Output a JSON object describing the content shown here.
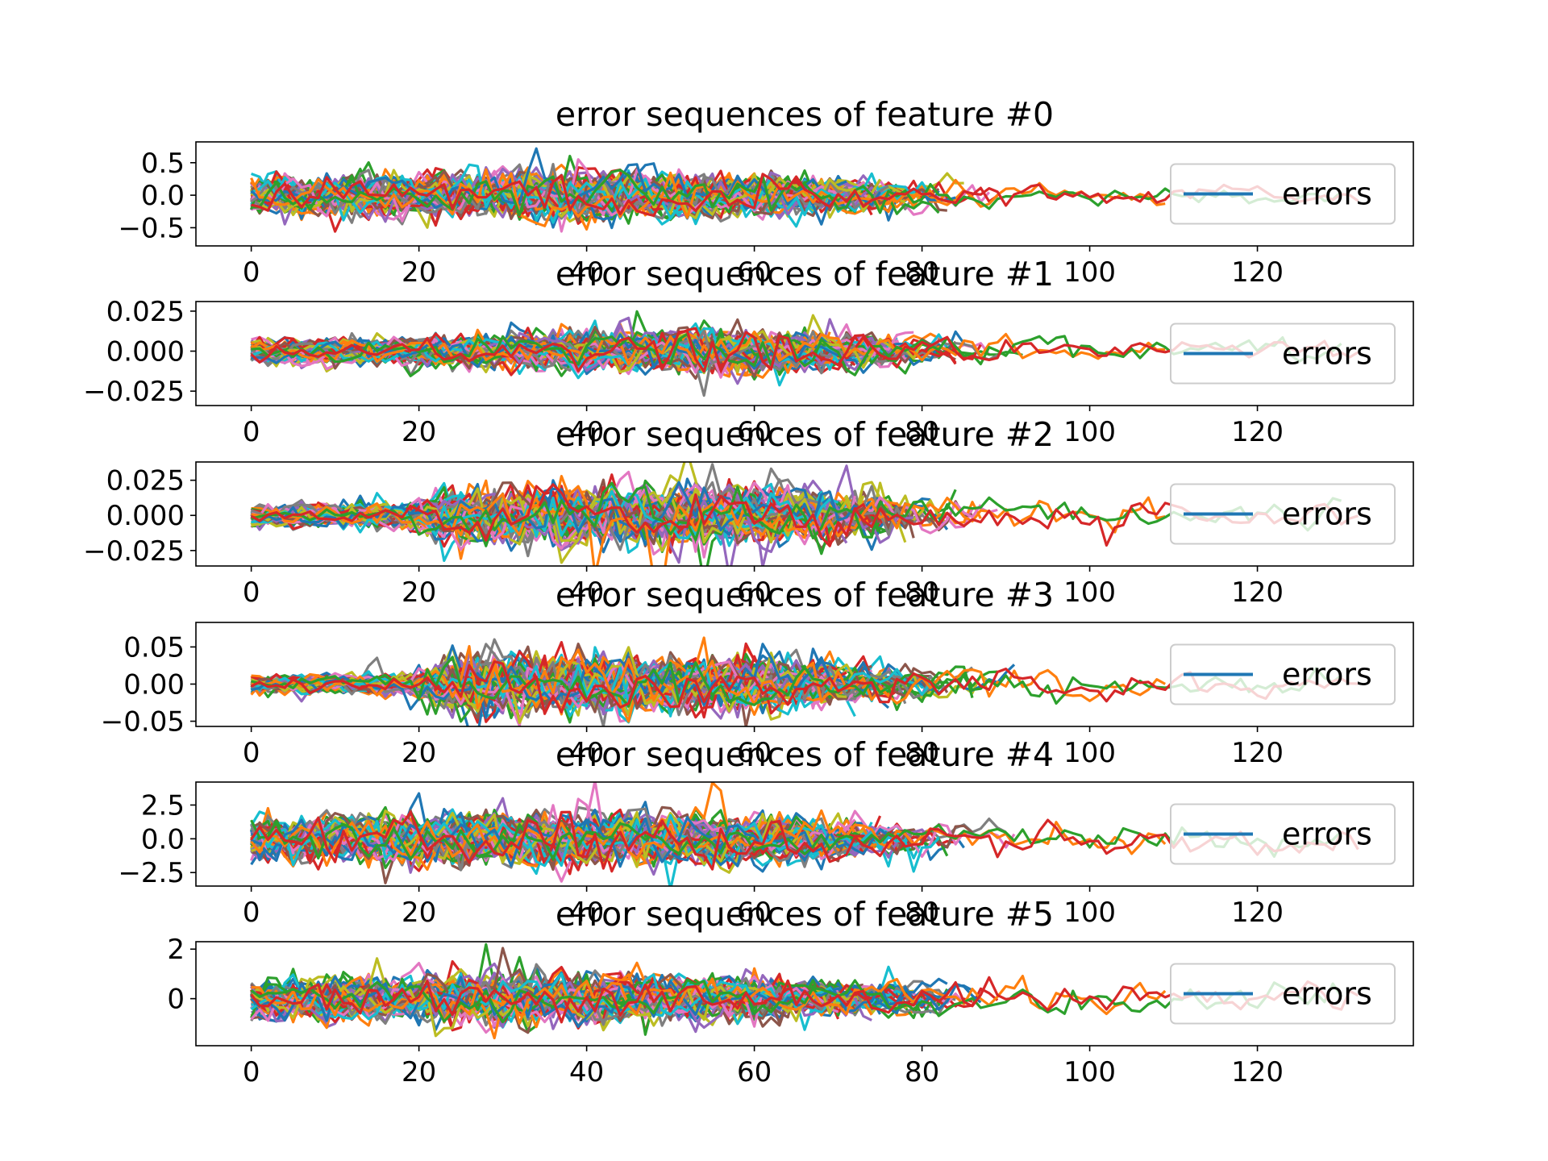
{
  "chart_data": [
    {
      "type": "line",
      "title": "error sequences of feature #0",
      "xlabel": "",
      "ylabel": "",
      "xlim": [
        -6.6,
        138.6
      ],
      "ylim": [
        -0.78,
        0.82
      ],
      "xticks": [
        0,
        20,
        40,
        60,
        80,
        100,
        120
      ],
      "xtick_labels": [
        "0",
        "20",
        "40",
        "60",
        "80",
        "100",
        "120"
      ],
      "yticks": [
        -0.5,
        0.0,
        0.5
      ],
      "ytick_labels": [
        "−0.5",
        "0.0",
        "0.5"
      ],
      "amplitude_envelope": [
        [
          0,
          0.32
        ],
        [
          20,
          0.33
        ],
        [
          30,
          0.42
        ],
        [
          40,
          0.45
        ],
        [
          60,
          0.34
        ],
        [
          75,
          0.28
        ],
        [
          90,
          0.2
        ],
        [
          110,
          0.14
        ],
        [
          132,
          0.2
        ]
      ],
      "series_count": 64,
      "series_length_range": [
        70,
        133
      ],
      "grid": false,
      "legend": {
        "entries": [
          "errors"
        ],
        "position": "right",
        "color": "#1f77b4"
      }
    },
    {
      "type": "line",
      "title": "error sequences of feature #1",
      "xlabel": "",
      "ylabel": "",
      "xlim": [
        -6.6,
        138.6
      ],
      "ylim": [
        -0.034,
        0.031
      ],
      "xticks": [
        0,
        20,
        40,
        60,
        80,
        100,
        120
      ],
      "xtick_labels": [
        "0",
        "20",
        "40",
        "60",
        "80",
        "100",
        "120"
      ],
      "yticks": [
        -0.025,
        0.0,
        0.025
      ],
      "ytick_labels": [
        "−0.025",
        "0.000",
        "0.025"
      ],
      "amplitude_envelope": [
        [
          0,
          0.008
        ],
        [
          20,
          0.009
        ],
        [
          40,
          0.014
        ],
        [
          60,
          0.016
        ],
        [
          75,
          0.011
        ],
        [
          100,
          0.007
        ],
        [
          132,
          0.008
        ]
      ],
      "series_count": 64,
      "series_length_range": [
        70,
        133
      ],
      "grid": false,
      "legend": {
        "entries": [
          "errors"
        ],
        "position": "right",
        "color": "#1f77b4"
      }
    },
    {
      "type": "line",
      "title": "error sequences of feature #2",
      "xlabel": "",
      "ylabel": "",
      "xlim": [
        -6.6,
        138.6
      ],
      "ylim": [
        -0.036,
        0.038
      ],
      "xticks": [
        0,
        20,
        40,
        60,
        80,
        100,
        120
      ],
      "xtick_labels": [
        "0",
        "20",
        "40",
        "60",
        "80",
        "100",
        "120"
      ],
      "yticks": [
        -0.025,
        0.0,
        0.025
      ],
      "ytick_labels": [
        "−0.025",
        "0.000",
        "0.025"
      ],
      "amplitude_envelope": [
        [
          0,
          0.008
        ],
        [
          18,
          0.01
        ],
        [
          25,
          0.022
        ],
        [
          45,
          0.024
        ],
        [
          65,
          0.022
        ],
        [
          80,
          0.016
        ],
        [
          100,
          0.012
        ],
        [
          132,
          0.013
        ]
      ],
      "series_count": 64,
      "series_length_range": [
        70,
        133
      ],
      "grid": false,
      "legend": {
        "entries": [
          "errors"
        ],
        "position": "right",
        "color": "#1f77b4"
      }
    },
    {
      "type": "line",
      "title": "error sequences of feature #3",
      "xlabel": "",
      "ylabel": "",
      "xlim": [
        -6.6,
        138.6
      ],
      "ylim": [
        -0.057,
        0.083
      ],
      "xticks": [
        0,
        20,
        40,
        60,
        80,
        100,
        120
      ],
      "xtick_labels": [
        "0",
        "20",
        "40",
        "60",
        "80",
        "100",
        "120"
      ],
      "yticks": [
        -0.05,
        0.0,
        0.05
      ],
      "ytick_labels": [
        "−0.05",
        "0.00",
        "0.05"
      ],
      "amplitude_envelope": [
        [
          0,
          0.012
        ],
        [
          18,
          0.014
        ],
        [
          26,
          0.05
        ],
        [
          40,
          0.045
        ],
        [
          60,
          0.04
        ],
        [
          75,
          0.03
        ],
        [
          100,
          0.022
        ],
        [
          132,
          0.02
        ]
      ],
      "series_count": 64,
      "series_length_range": [
        70,
        133
      ],
      "grid": false,
      "legend": {
        "entries": [
          "errors"
        ],
        "position": "right",
        "color": "#1f77b4"
      }
    },
    {
      "type": "line",
      "title": "error sequences of feature #4",
      "xlabel": "",
      "ylabel": "",
      "xlim": [
        -6.6,
        138.6
      ],
      "ylim": [
        -3.5,
        4.2
      ],
      "xticks": [
        0,
        20,
        40,
        60,
        80,
        100,
        120
      ],
      "xtick_labels": [
        "0",
        "20",
        "40",
        "60",
        "80",
        "100",
        "120"
      ],
      "yticks": [
        -2.5,
        0.0,
        2.5
      ],
      "ytick_labels": [
        "−2.5",
        "0.0",
        "2.5"
      ],
      "amplitude_envelope": [
        [
          0,
          1.8
        ],
        [
          20,
          2.0
        ],
        [
          40,
          2.2
        ],
        [
          60,
          1.9
        ],
        [
          75,
          1.6
        ],
        [
          100,
          1.2
        ],
        [
          132,
          1.3
        ]
      ],
      "series_count": 64,
      "series_length_range": [
        70,
        133
      ],
      "grid": false,
      "legend": {
        "entries": [
          "errors"
        ],
        "position": "right",
        "color": "#1f77b4"
      }
    },
    {
      "type": "line",
      "title": "error sequences of feature #5",
      "xlabel": "",
      "ylabel": "",
      "xlim": [
        -6.6,
        138.6
      ],
      "ylim": [
        -1.9,
        2.3
      ],
      "xticks": [
        0,
        20,
        40,
        60,
        80,
        100,
        120
      ],
      "xtick_labels": [
        "0",
        "20",
        "40",
        "60",
        "80",
        "100",
        "120"
      ],
      "yticks": [
        0,
        2
      ],
      "ytick_labels": [
        "0",
        "2"
      ],
      "amplitude_envelope": [
        [
          0,
          0.9
        ],
        [
          20,
          1.0
        ],
        [
          40,
          1.1
        ],
        [
          60,
          0.9
        ],
        [
          75,
          0.7
        ],
        [
          100,
          0.6
        ],
        [
          132,
          0.7
        ]
      ],
      "series_count": 64,
      "series_length_range": [
        70,
        133
      ],
      "grid": false,
      "legend": {
        "entries": [
          "errors"
        ],
        "position": "right",
        "color": "#1f77b4"
      }
    }
  ],
  "colors": [
    "#1f77b4",
    "#ff7f0e",
    "#2ca02c",
    "#d62728",
    "#9467bd",
    "#8c564b",
    "#e377c2",
    "#7f7f7f",
    "#bcbd22",
    "#17becf"
  ]
}
